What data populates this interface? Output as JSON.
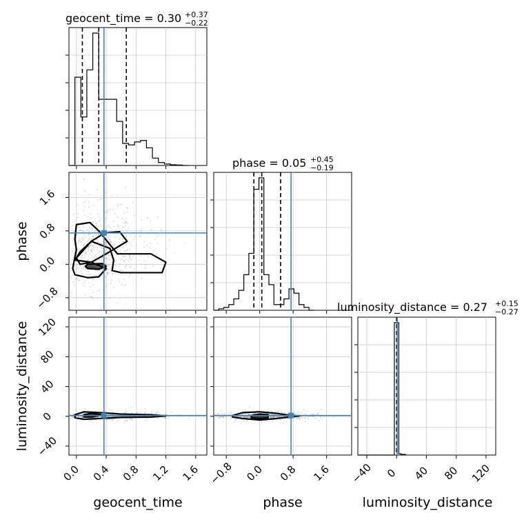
{
  "chart_data": {
    "type": "corner",
    "parameters": [
      "geocent_time",
      "phase",
      "luminosity_distance"
    ],
    "truth_color": "#4682b4",
    "truths": {
      "geocent_time": 0.37,
      "phase": 0.75,
      "luminosity_distance": 1.0
    },
    "marginal_titles": [
      {
        "param": "geocent_time",
        "text": "geocent_time = 0.30",
        "sup": "+0.37",
        "sub": "−0.22"
      },
      {
        "param": "phase",
        "text": "phase = 0.05",
        "sup": "+0.45",
        "sub": "−0.19"
      },
      {
        "param": "luminosity_distance",
        "text": "luminosity_distance = 0.27",
        "sup": "+0.15",
        "sub": "−0.27"
      }
    ],
    "axes": {
      "geocent_time": {
        "label": "geocent_time",
        "range": [
          -0.1,
          1.75
        ],
        "ticks": [
          0.0,
          0.4,
          0.8,
          1.2,
          1.6
        ],
        "tick_labels": [
          "0.0",
          "0.4",
          "0.8",
          "1.2",
          "1.6"
        ]
      },
      "phase": {
        "label": "phase",
        "range": [
          -1.1,
          2.2
        ],
        "ticks": [
          -0.8,
          0.0,
          0.8,
          1.6
        ],
        "tick_labels": [
          "−0.8",
          "0.0",
          "0.8",
          "1.6"
        ]
      },
      "luminosity_distance": {
        "label": "luminosity_distance",
        "range": [
          -52,
          133
        ],
        "ticks": [
          -40,
          0,
          40,
          80,
          120
        ],
        "tick_labels": [
          "−40",
          "0",
          "40",
          "80",
          "120"
        ]
      }
    },
    "histograms": {
      "geocent_time": {
        "bin_edges": [
          -0.1,
          -0.02,
          0.06,
          0.14,
          0.22,
          0.3,
          0.38,
          0.46,
          0.54,
          0.62,
          0.7,
          0.78,
          0.86,
          0.94,
          1.02,
          1.1,
          1.18,
          1.26,
          1.34,
          1.42,
          1.5
        ],
        "counts": [
          0,
          0.6,
          0.33,
          0.65,
          0.9,
          0.45,
          0.45,
          0.45,
          0.3,
          0.15,
          0.14,
          0.16,
          0.17,
          0.12,
          0.05,
          0.02,
          0.01,
          0.005,
          0.003,
          0.0
        ],
        "quantiles": [
          0.08,
          0.3,
          0.67
        ]
      },
      "phase": {
        "bin_edges": [
          -1.1,
          -0.98,
          -0.86,
          -0.74,
          -0.62,
          -0.5,
          -0.38,
          -0.26,
          -0.14,
          -0.02,
          0.1,
          0.22,
          0.34,
          0.46,
          0.58,
          0.7,
          0.82,
          0.94,
          1.06,
          1.18,
          1.3
        ],
        "counts": [
          0,
          0.01,
          0.02,
          0.04,
          0.08,
          0.14,
          0.25,
          0.4,
          0.85,
          0.93,
          0.25,
          0.18,
          0.04,
          0.04,
          0.08,
          0.15,
          0.12,
          0.04,
          0.02,
          0.0
        ],
        "quantiles": [
          -0.14,
          0.05,
          0.5
        ]
      },
      "luminosity_distance": {
        "bin_edges": [
          -52,
          -3,
          3,
          6,
          12
        ],
        "counts": [
          0,
          1.0,
          0.01,
          0.005
        ],
        "quantiles": [
          0.0,
          0.27,
          0.42
        ]
      }
    },
    "contours": {
      "phase_vs_geocent_time": [
        [
          [
            0.0,
            0.15
          ],
          [
            0.1,
            0.35
          ],
          [
            0.2,
            0.55
          ],
          [
            0.38,
            0.75
          ],
          [
            0.58,
            0.78
          ],
          [
            0.68,
            0.55
          ],
          [
            0.4,
            0.25
          ],
          [
            0.2,
            0.05
          ],
          [
            0.05,
            0.0
          ]
        ],
        [
          [
            -0.02,
            0.1
          ],
          [
            0.05,
            0.3
          ],
          [
            0.2,
            0.55
          ],
          [
            0.45,
            0.38
          ],
          [
            0.5,
            0.1
          ],
          [
            0.48,
            -0.15
          ],
          [
            0.6,
            -0.2
          ],
          [
            1.15,
            -0.2
          ],
          [
            1.2,
            0.05
          ],
          [
            1.0,
            0.25
          ],
          [
            0.55,
            0.25
          ],
          [
            0.3,
            0.8
          ],
          [
            0.18,
            1.0
          ],
          [
            0.0,
            0.95
          ],
          [
            -0.02,
            0.6
          ],
          [
            0.0,
            0.35
          ],
          [
            -0.05,
            -0.1
          ],
          [
            -0.02,
            -0.25
          ],
          [
            0.15,
            -0.32
          ],
          [
            0.3,
            -0.3
          ],
          [
            0.4,
            -0.1
          ],
          [
            0.2,
            0.05
          ]
        ],
        [
          [
            0.15,
            0.0
          ],
          [
            0.35,
            0.02
          ],
          [
            0.4,
            -0.05
          ],
          [
            0.3,
            -0.12
          ],
          [
            0.15,
            -0.1
          ],
          [
            0.12,
            -0.05
          ]
        ]
      ],
      "luminosity_distance_vs_geocent_time": [
        [
          [
            -0.02,
            2
          ],
          [
            0.1,
            6
          ],
          [
            0.3,
            5
          ],
          [
            0.6,
            3
          ],
          [
            1.0,
            2
          ],
          [
            1.2,
            0.5
          ],
          [
            1.0,
            -1
          ],
          [
            0.6,
            -1.5
          ],
          [
            0.3,
            -3
          ],
          [
            0.1,
            -4
          ],
          [
            -0.02,
            -2
          ]
        ],
        [
          [
            0.1,
            2
          ],
          [
            0.2,
            4
          ],
          [
            0.35,
            2
          ],
          [
            0.2,
            -1
          ],
          [
            0.1,
            -1
          ]
        ]
      ],
      "luminosity_distance_vs_phase": [
        [
          [
            -0.65,
            1
          ],
          [
            -0.4,
            5
          ],
          [
            0.0,
            6
          ],
          [
            0.4,
            4
          ],
          [
            0.7,
            1.5
          ],
          [
            0.95,
            0.5
          ],
          [
            0.7,
            -1
          ],
          [
            0.4,
            -3
          ],
          [
            0.0,
            -5
          ],
          [
            -0.4,
            -3
          ],
          [
            -0.65,
            -1
          ]
        ],
        [
          [
            -0.2,
            1
          ],
          [
            0.0,
            3
          ],
          [
            0.2,
            2
          ],
          [
            0.2,
            -2
          ],
          [
            0.0,
            -3
          ],
          [
            -0.2,
            -2
          ]
        ]
      ]
    }
  }
}
